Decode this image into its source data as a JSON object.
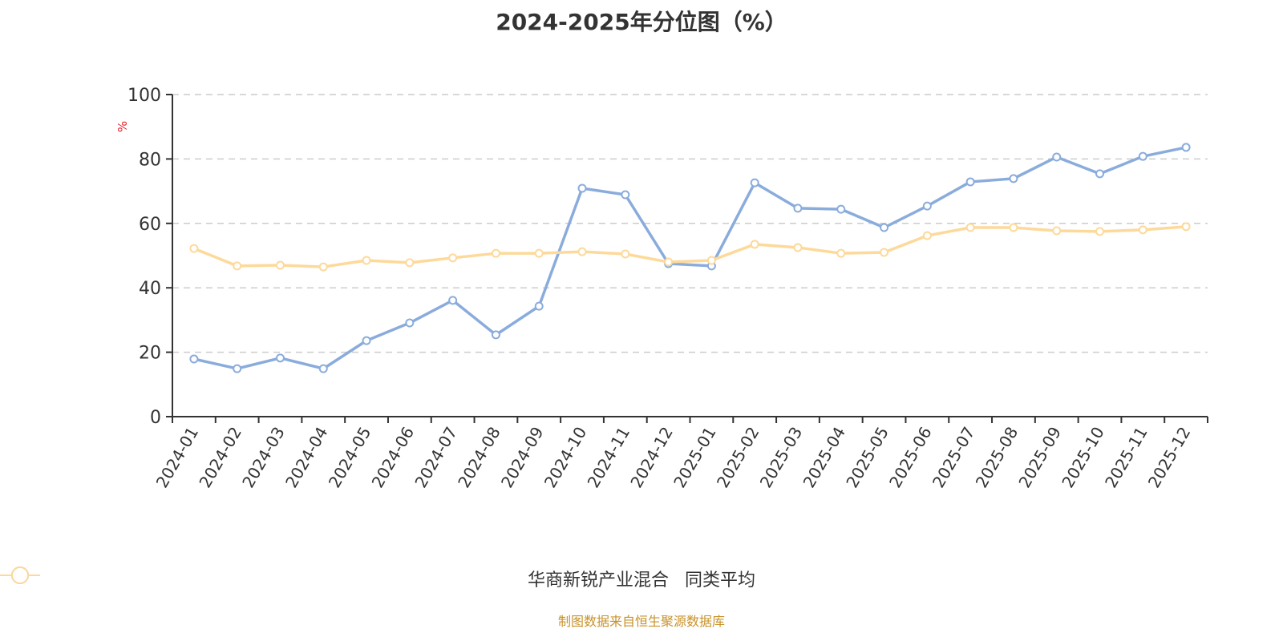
{
  "title": "2024-2025年分位图（%）",
  "source_note": "制图数据来自恒生聚源数据库",
  "colors": {
    "series1": "#8aacdc",
    "series2": "#fdd99a",
    "unit": "#e8202a",
    "axis": "#333333",
    "grid": "#cccccc"
  },
  "chart_data": {
    "type": "line",
    "title": "2024-2025年分位图（%）",
    "xlabel": "",
    "ylabel": "%",
    "ylim": [
      0,
      100
    ],
    "yticks": [
      0,
      20,
      40,
      60,
      80,
      100
    ],
    "grid": true,
    "legend_position": "bottom",
    "categories": [
      "2024-01",
      "2024-02",
      "2024-03",
      "2024-04",
      "2024-05",
      "2024-06",
      "2024-07",
      "2024-08",
      "2024-09",
      "2024-10",
      "2024-11",
      "2024-12",
      "2025-01",
      "2025-02",
      "2025-03",
      "2025-04",
      "2025-05",
      "2025-06",
      "2025-07",
      "2025-08",
      "2025-09",
      "2025-10",
      "2025-11",
      "2025-12"
    ],
    "series": [
      {
        "name": "华商新锐产业混合",
        "color": "#8aacdc",
        "values": [
          17.9,
          14.9,
          18.2,
          14.9,
          23.6,
          29.1,
          36.1,
          25.4,
          34.3,
          70.9,
          68.9,
          47.5,
          46.8,
          72.6,
          64.7,
          64.4,
          58.7,
          65.4,
          72.9,
          73.9,
          80.6,
          75.4,
          80.8,
          83.6
        ]
      },
      {
        "name": "同类平均",
        "color": "#fdd99a",
        "values": [
          52.2,
          46.8,
          47.0,
          46.5,
          48.5,
          47.8,
          49.3,
          50.7,
          50.7,
          51.2,
          50.5,
          48.0,
          48.5,
          53.5,
          52.5,
          50.7,
          51.0,
          56.2,
          58.7,
          58.7,
          57.7,
          57.5,
          58.0,
          59.0
        ]
      }
    ]
  }
}
